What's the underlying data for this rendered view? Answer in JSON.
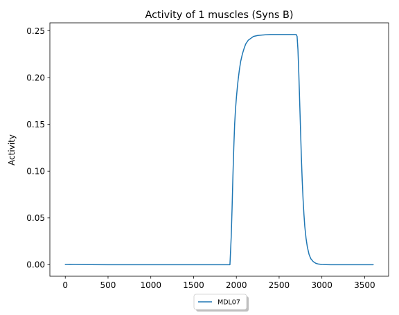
{
  "chart_data": {
    "type": "line",
    "title": "Activity of 1 muscles (Syns B)",
    "xlabel": "",
    "ylabel": "Activity",
    "xlim": [
      -180,
      3780
    ],
    "ylim": [
      -0.0123,
      0.2585
    ],
    "xticks": [
      0,
      500,
      1000,
      1500,
      2000,
      2500,
      3000,
      3500
    ],
    "xtick_labels": [
      "0",
      "500",
      "1000",
      "1500",
      "2000",
      "2500",
      "3000",
      "3500"
    ],
    "yticks": [
      0.0,
      0.05,
      0.1,
      0.15,
      0.2,
      0.25
    ],
    "ytick_labels": [
      "0.00",
      "0.05",
      "0.10",
      "0.15",
      "0.20",
      "0.25"
    ],
    "grid": false,
    "legend_position": "below-center",
    "series": [
      {
        "name": "MDL07",
        "color": "#1f77b4",
        "x": [
          0,
          50,
          100,
          200,
          300,
          500,
          1000,
          1500,
          1900,
          1925,
          1940,
          1950,
          1960,
          1970,
          1980,
          1990,
          2000,
          2010,
          2020,
          2035,
          2050,
          2070,
          2090,
          2110,
          2140,
          2170,
          2200,
          2250,
          2300,
          2400,
          2500,
          2600,
          2700,
          2710,
          2720,
          2730,
          2740,
          2750,
          2760,
          2770,
          2780,
          2790,
          2800,
          2815,
          2830,
          2850,
          2870,
          2900,
          2930,
          2960,
          3000,
          3050,
          3100,
          3200,
          3400,
          3600
        ],
        "y": [
          0.0003,
          0.0005,
          0.0004,
          0.0002,
          0.0001,
          0.0,
          0.0,
          0.0,
          0.0,
          0.0,
          0.03,
          0.06,
          0.095,
          0.125,
          0.15,
          0.166,
          0.178,
          0.188,
          0.197,
          0.208,
          0.217,
          0.225,
          0.231,
          0.236,
          0.24,
          0.242,
          0.244,
          0.245,
          0.2455,
          0.246,
          0.246,
          0.246,
          0.246,
          0.244,
          0.23,
          0.205,
          0.175,
          0.145,
          0.115,
          0.09,
          0.07,
          0.054,
          0.041,
          0.028,
          0.019,
          0.011,
          0.0065,
          0.0032,
          0.0015,
          0.0007,
          0.0003,
          0.0001,
          0.0,
          0.0,
          0.0,
          0.0
        ]
      }
    ]
  }
}
